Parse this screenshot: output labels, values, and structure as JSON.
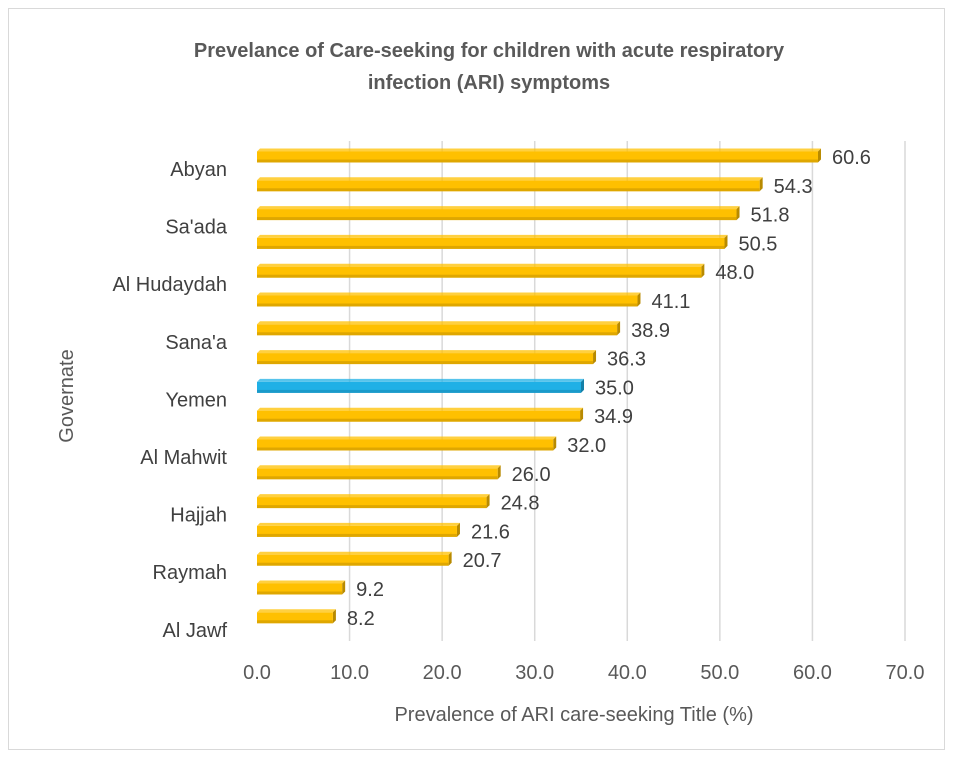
{
  "chart_data": {
    "type": "bar",
    "orientation": "horizontal",
    "title_lines": [
      "Prevelance of Care-seeking for children with acute respiratory",
      "infection (ARI) symptoms"
    ],
    "xlabel": "Prevalence of ARI care-seeking Title (%)",
    "ylabel": "Governate",
    "xlim": [
      0,
      70
    ],
    "xticks": [
      "0.0",
      "10.0",
      "20.0",
      "30.0",
      "40.0",
      "50.0",
      "60.0",
      "70.0"
    ],
    "grid": "vertical",
    "legend": "none",
    "colors": {
      "bar": "#FFC000",
      "bar_edge": "#B88A00",
      "highlight": "#1FB0E6",
      "highlight_edge": "#1480A8",
      "grid": "#d9d9d9"
    },
    "categories": [
      "Abyan",
      "",
      "Sa'ada",
      "",
      "Al Hudaydah",
      "",
      "Sana'a",
      "",
      "Yemen",
      "",
      "Al Mahwit",
      "",
      "Hajjah",
      "",
      "Raymah",
      "",
      "Al Jawf"
    ],
    "values": [
      60.6,
      54.3,
      51.8,
      50.5,
      48.0,
      41.1,
      38.9,
      36.3,
      35.0,
      34.9,
      32.0,
      26.0,
      24.8,
      21.6,
      20.7,
      9.2,
      8.2
    ],
    "value_labels": [
      "60.6",
      "54.3",
      "51.8",
      "50.5",
      "48.0",
      "41.1",
      "38.9",
      "36.3",
      "35.0",
      "34.9",
      "32.0",
      "26.0",
      "24.8",
      "21.6",
      "20.7",
      "9.2",
      "8.2"
    ],
    "highlight_category": "Yemen"
  }
}
